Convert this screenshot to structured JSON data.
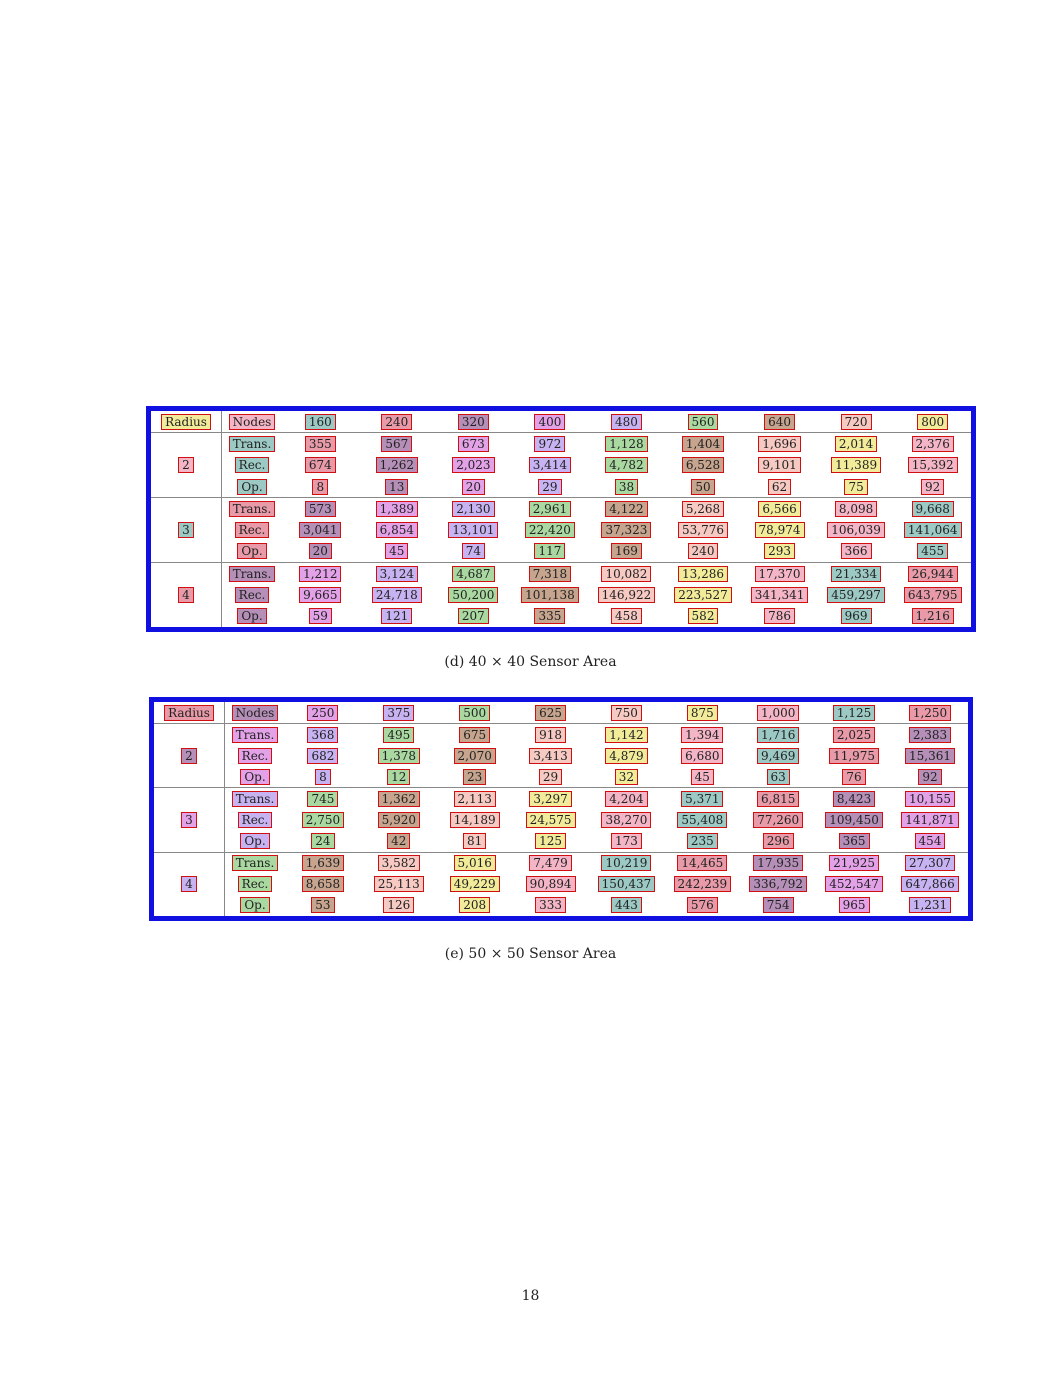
{
  "tables": [
    {
      "caption": "(d) 40 × 40 Sensor Area",
      "header": {
        "radius_label": "Radius",
        "nodes_label": "Nodes",
        "nodes": [
          "160",
          "240",
          "320",
          "400",
          "480",
          "560",
          "640",
          "720",
          "800"
        ]
      },
      "groups": [
        {
          "radius": "2",
          "rows": [
            {
              "label": "Trans.",
              "values": [
                "355",
                "567",
                "673",
                "972",
                "1,128",
                "1,404",
                "1,696",
                "2,014",
                "2,376"
              ]
            },
            {
              "label": "Rec.",
              "values": [
                "674",
                "1,262",
                "2,023",
                "3,414",
                "4,782",
                "6,528",
                "9,101",
                "11,389",
                "15,392"
              ]
            },
            {
              "label": "Op.",
              "values": [
                "8",
                "13",
                "20",
                "29",
                "38",
                "50",
                "62",
                "75",
                "92"
              ]
            }
          ]
        },
        {
          "radius": "3",
          "rows": [
            {
              "label": "Trans.",
              "values": [
                "573",
                "1,389",
                "2,130",
                "2,961",
                "4,122",
                "5,268",
                "6,566",
                "8,098",
                "9,668"
              ]
            },
            {
              "label": "Rec.",
              "values": [
                "3,041",
                "6,854",
                "13,101",
                "22,420",
                "37,323",
                "53,776",
                "78,974",
                "106,039",
                "141,064"
              ]
            },
            {
              "label": "Op.",
              "values": [
                "20",
                "45",
                "74",
                "117",
                "169",
                "240",
                "293",
                "366",
                "455"
              ]
            }
          ]
        },
        {
          "radius": "4",
          "rows": [
            {
              "label": "Trans.",
              "values": [
                "1,212",
                "3,124",
                "4,687",
                "7,318",
                "10,082",
                "13,286",
                "17,370",
                "21,334",
                "26,944"
              ]
            },
            {
              "label": "Rec.",
              "values": [
                "9,665",
                "24,718",
                "50,200",
                "101,138",
                "146,922",
                "223,527",
                "341,341",
                "459,297",
                "643,795"
              ]
            },
            {
              "label": "Op.",
              "values": [
                "59",
                "121",
                "207",
                "335",
                "458",
                "582",
                "786",
                "969",
                "1,216"
              ]
            }
          ]
        }
      ]
    },
    {
      "caption": "(e) 50 × 50 Sensor Area",
      "header": {
        "radius_label": "Radius",
        "nodes_label": "Nodes",
        "nodes": [
          "250",
          "375",
          "500",
          "625",
          "750",
          "875",
          "1,000",
          "1,125",
          "1,250"
        ]
      },
      "groups": [
        {
          "radius": "2",
          "rows": [
            {
              "label": "Trans.",
              "values": [
                "368",
                "495",
                "675",
                "918",
                "1,142",
                "1,394",
                "1,716",
                "2,025",
                "2,383"
              ]
            },
            {
              "label": "Rec.",
              "values": [
                "682",
                "1,378",
                "2,070",
                "3,413",
                "4,879",
                "6,680",
                "9,469",
                "11,975",
                "15,361"
              ]
            },
            {
              "label": "Op.",
              "values": [
                "8",
                "12",
                "23",
                "29",
                "32",
                "45",
                "63",
                "76",
                "92"
              ]
            }
          ]
        },
        {
          "radius": "3",
          "rows": [
            {
              "label": "Trans.",
              "values": [
                "745",
                "1,362",
                "2,113",
                "3,297",
                "4,204",
                "5,371",
                "6,815",
                "8,423",
                "10,155"
              ]
            },
            {
              "label": "Rec.",
              "values": [
                "2,750",
                "5,920",
                "14,189",
                "24,575",
                "38,270",
                "55,408",
                "77,260",
                "109,450",
                "141,871"
              ]
            },
            {
              "label": "Op.",
              "values": [
                "24",
                "42",
                "81",
                "125",
                "173",
                "235",
                "296",
                "365",
                "454"
              ]
            }
          ]
        },
        {
          "radius": "4",
          "rows": [
            {
              "label": "Trans.",
              "values": [
                "1,639",
                "3,582",
                "5,016",
                "7,479",
                "10,219",
                "14,465",
                "17,935",
                "21,925",
                "27,307"
              ]
            },
            {
              "label": "Rec.",
              "values": [
                "8,658",
                "25,113",
                "49,229",
                "90,894",
                "150,437",
                "242,239",
                "336,792",
                "452,547",
                "647,866"
              ]
            },
            {
              "label": "Op.",
              "values": [
                "53",
                "126",
                "208",
                "333",
                "443",
                "576",
                "754",
                "965",
                "1,231"
              ]
            }
          ]
        }
      ]
    }
  ],
  "page_number": "18"
}
